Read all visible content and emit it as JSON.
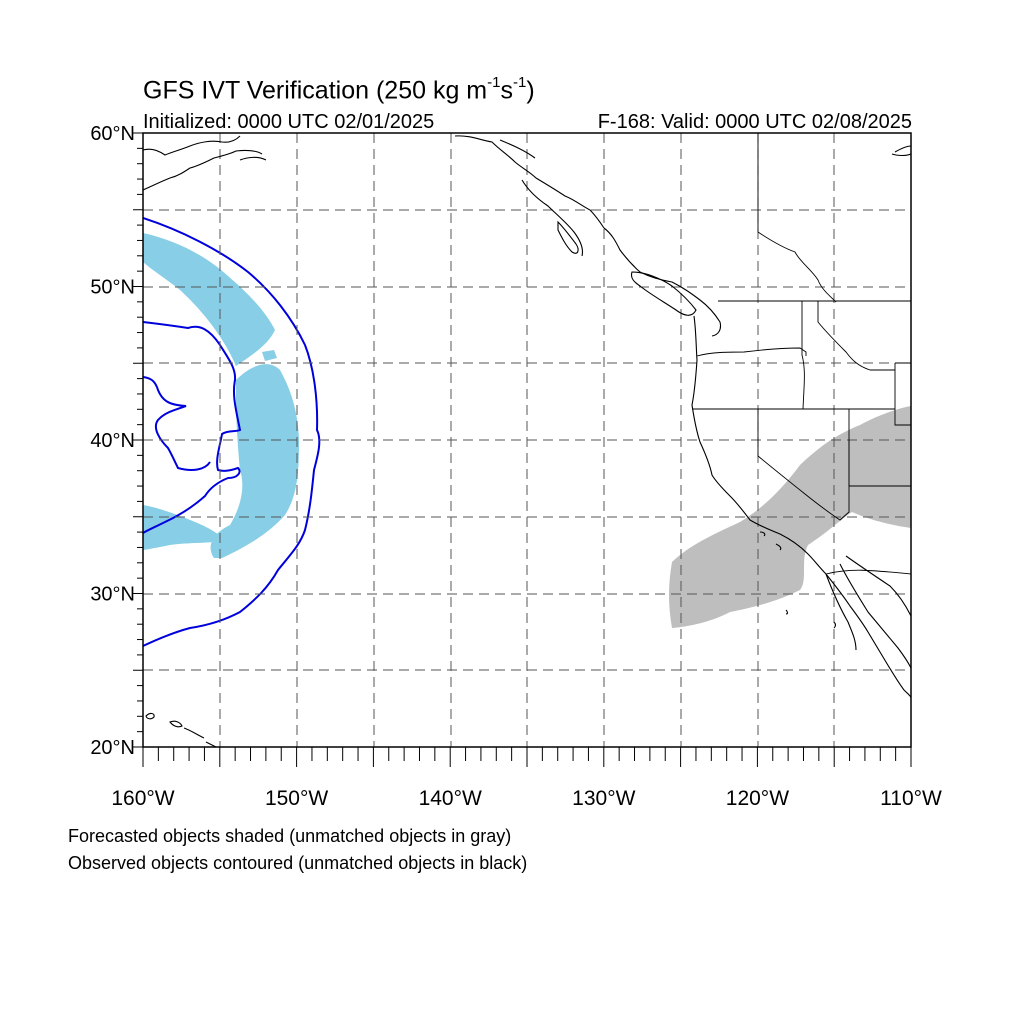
{
  "title": {
    "main": "GFS IVT Verification (250 kg m",
    "sup1": "-1",
    "mid": "s",
    "sup2": "-1",
    "end": ")"
  },
  "subtitle": {
    "initialized": "Initialized: 0000 UTC 02/01/2025",
    "valid": "F-168: Valid: 0000 UTC 02/08/2025"
  },
  "map": {
    "lon_range": [
      -160,
      -110
    ],
    "lat_range": [
      20,
      60
    ],
    "grid": "dashed every 5 degrees",
    "lat_ticks": [
      {
        "value": 60,
        "label": "60°N"
      },
      {
        "value": 50,
        "label": "50°N"
      },
      {
        "value": 40,
        "label": "40°N"
      },
      {
        "value": 30,
        "label": "30°N"
      },
      {
        "value": 20,
        "label": "20°N"
      }
    ],
    "lon_ticks": [
      {
        "value": -160,
        "label": "160°W"
      },
      {
        "value": -150,
        "label": "150°W"
      },
      {
        "value": -140,
        "label": "140°W"
      },
      {
        "value": -130,
        "label": "130°W"
      },
      {
        "value": -120,
        "label": "120°W"
      },
      {
        "value": -110,
        "label": "110°W"
      }
    ],
    "colors": {
      "matched_forecast_fill": "#87CEE6",
      "unmatched_forecast_fill": "#BEBEBE",
      "matched_observed_contour": "#0000DD",
      "coastline": "#000000",
      "grid": "#555555"
    }
  },
  "footer": {
    "line1": "Forecasted objects shaded (unmatched objects in gray)",
    "line2": "Observed objects contoured (unmatched objects in black)"
  }
}
